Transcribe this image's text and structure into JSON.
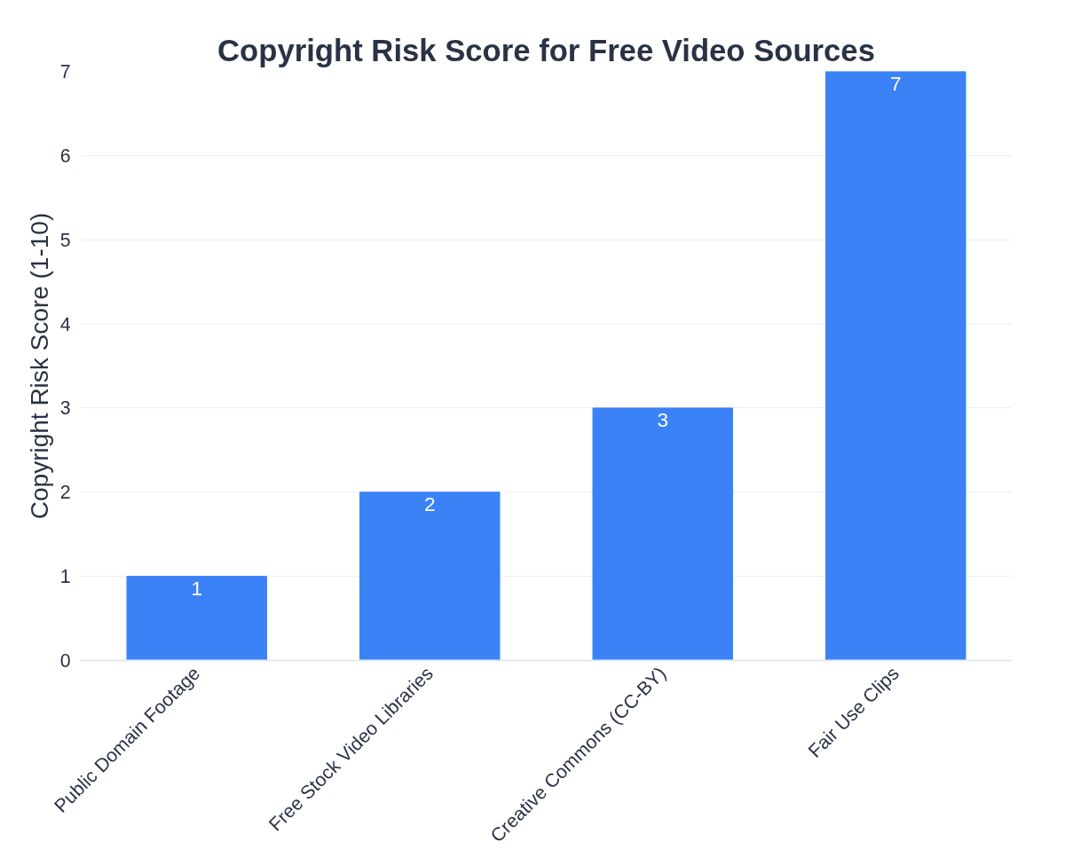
{
  "chart_data": {
    "type": "bar",
    "title": "Copyright Risk Score for Free Video Sources",
    "ylabel": "Copyright Risk Score (1-10)",
    "categories": [
      "Public Domain Footage",
      "Free Stock Video Libraries",
      "Creative Commons (CC-BY)",
      "Fair Use Clips"
    ],
    "values": [
      1,
      2,
      3,
      7
    ],
    "color": "#3b82f6",
    "ylim": [
      0,
      7
    ],
    "yticks": [
      0,
      1,
      2,
      3,
      4,
      5,
      6,
      7
    ],
    "grid": "y",
    "data_labels": true
  }
}
